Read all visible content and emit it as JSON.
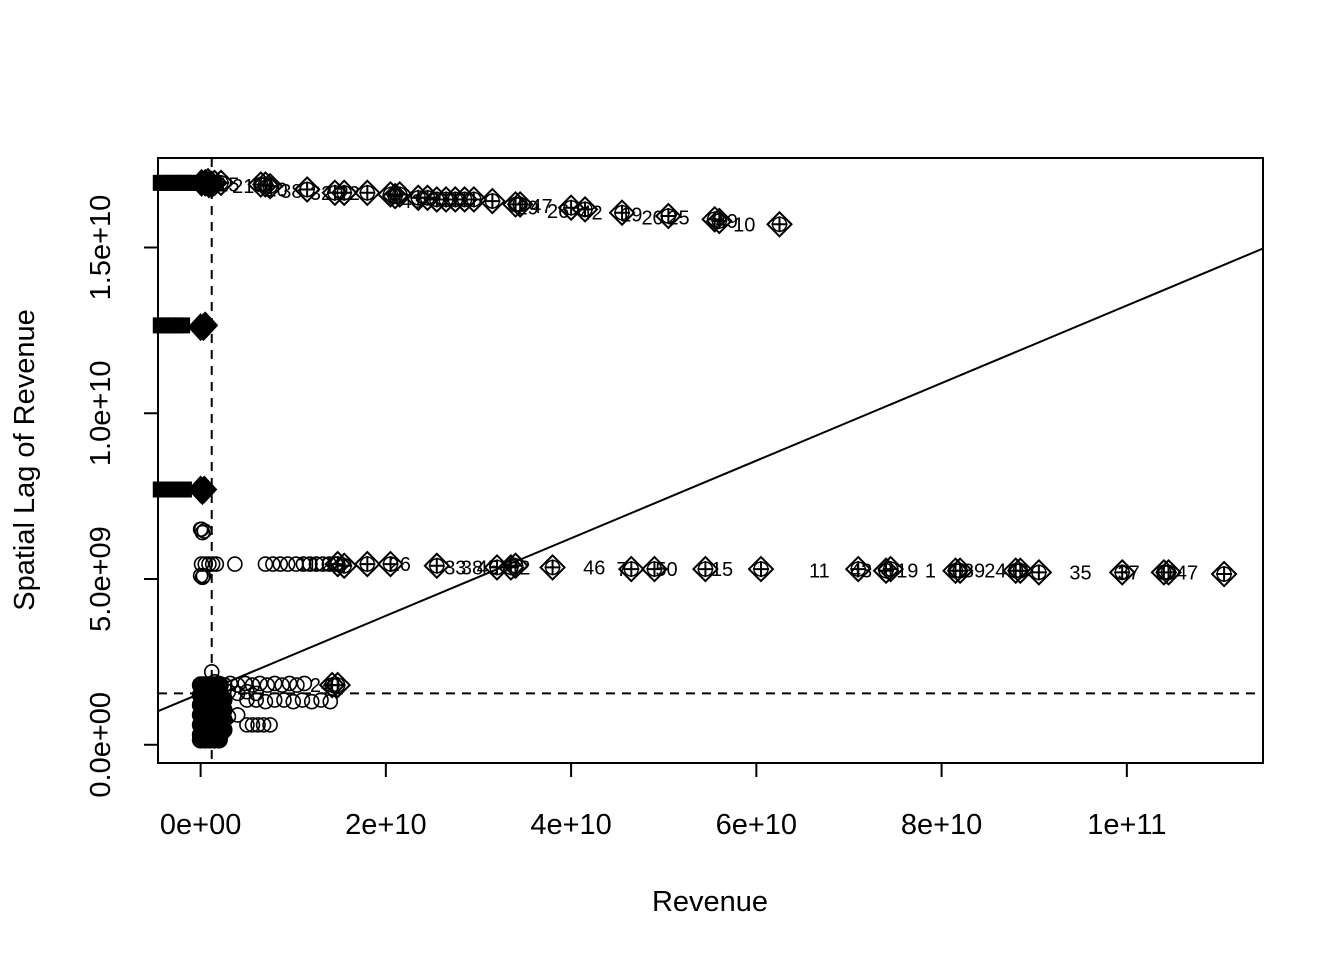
{
  "chart_data": {
    "type": "scatter",
    "title": "",
    "xlabel": "Revenue",
    "ylabel": "Spatial Lag of Revenue",
    "xlim": [
      -4600000000.0,
      114700000000.0
    ],
    "ylim": [
      -550000000.0,
      17700000000.0
    ],
    "x_ticks": [
      0,
      20000000000.0,
      40000000000.0,
      60000000000.0,
      80000000000.0,
      100000000000.0
    ],
    "x_tick_labels": [
      "0e+00",
      "2e+10",
      "4e+10",
      "6e+10",
      "8e+10",
      "1e+11"
    ],
    "y_ticks": [
      0,
      5000000000.0,
      10000000000.0,
      15000000000.0
    ],
    "y_tick_labels": [
      "0.0e+00",
      "5.0e+09",
      "1.0e+10",
      "1.5e+10"
    ],
    "mean_x": 1200000000.0,
    "mean_y": 1550000000.0,
    "regression_line": {
      "intercept": 1550000000.0,
      "slope": 0.117
    },
    "grid": false,
    "legend": "none",
    "clusters": [
      {
        "marker": "filled-square",
        "points": [
          [
            -4300000000.0,
            16950000000.0
          ],
          [
            -3600000000.0,
            16950000000.0
          ],
          [
            -3000000000.0,
            16950000000.0
          ],
          [
            -2400000000.0,
            16950000000.0
          ],
          [
            -1800000000.0,
            16950000000.0
          ],
          [
            -1200000000.0,
            16950000000.0
          ],
          [
            -700000000.0,
            16950000000.0
          ],
          [
            -4300000000.0,
            12650000000.0
          ],
          [
            -3500000000.0,
            12650000000.0
          ],
          [
            -2800000000.0,
            12650000000.0
          ],
          [
            -2000000000.0,
            12650000000.0
          ],
          [
            -4300000000.0,
            7700000000.0
          ],
          [
            -3400000000.0,
            7700000000.0
          ],
          [
            -2600000000.0,
            7700000000.0
          ],
          [
            -1800000000.0,
            7700000000.0
          ]
        ]
      },
      {
        "marker": "filled-diamond",
        "points": [
          [
            100000000.0,
            16950000000.0
          ],
          [
            500000000.0,
            16950000000.0
          ],
          [
            900000000.0,
            16900000000.0
          ],
          [
            1200000000.0,
            16900000000.0
          ],
          [
            0.0,
            12600000000.0
          ],
          [
            300000000.0,
            12600000000.0
          ],
          [
            500000000.0,
            12650000000.0
          ],
          [
            0.0,
            7700000000.0
          ],
          [
            200000000.0,
            7650000000.0
          ],
          [
            400000000.0,
            7700000000.0
          ]
        ]
      },
      {
        "marker": "open-circle",
        "points": [
          [
            0.0,
            6500000000.0
          ],
          [
            200000000.0,
            6400000000.0
          ],
          [
            400000000.0,
            6450000000.0
          ],
          [
            100000000.0,
            6500000000.0
          ],
          [
            0.0,
            5100000000.0
          ],
          [
            200000000.0,
            5050000000.0
          ],
          [
            300000000.0,
            5100000000.0
          ],
          [
            100000000.0,
            5450000000.0
          ],
          [
            500000000.0,
            5450000000.0
          ],
          [
            900000000.0,
            5450000000.0
          ],
          [
            1300000000.0,
            5450000000.0
          ],
          [
            1700000000.0,
            5450000000.0
          ],
          [
            3700000000.0,
            5450000000.0
          ],
          [
            7000000000.0,
            5450000000.0
          ],
          [
            7800000000.0,
            5450000000.0
          ],
          [
            8600000000.0,
            5450000000.0
          ],
          [
            9400000000.0,
            5450000000.0
          ],
          [
            10300000000.0,
            5450000000.0
          ],
          [
            11100000000.0,
            5450000000.0
          ],
          [
            11800000000.0,
            5450000000.0
          ],
          [
            12500000000.0,
            5450000000.0
          ],
          [
            13200000000.0,
            5450000000.0
          ],
          [
            13900000000.0,
            5450000000.0
          ],
          [
            14600000000.0,
            5450000000.0
          ],
          [
            1200000000.0,
            2200000000.0
          ],
          [
            1500000000.0,
            1900000000.0
          ],
          [
            2000000000.0,
            1850000000.0
          ],
          [
            2600000000.0,
            1800000000.0
          ],
          [
            3200000000.0,
            1850000000.0
          ],
          [
            4000000000.0,
            1800000000.0
          ],
          [
            4800000000.0,
            1850000000.0
          ],
          [
            5600000000.0,
            1800000000.0
          ],
          [
            6400000000.0,
            1850000000.0
          ],
          [
            7200000000.0,
            1800000000.0
          ],
          [
            8000000000.0,
            1850000000.0
          ],
          [
            8800000000.0,
            1800000000.0
          ],
          [
            9600000000.0,
            1850000000.0
          ],
          [
            10400000000.0,
            1800000000.0
          ],
          [
            11200000000.0,
            1850000000.0
          ],
          [
            5000000000.0,
            1350000000.0
          ],
          [
            6000000000.0,
            1350000000.0
          ],
          [
            7000000000.0,
            1300000000.0
          ],
          [
            8000000000.0,
            1350000000.0
          ],
          [
            9000000000.0,
            1350000000.0
          ],
          [
            10000000000.0,
            1300000000.0
          ],
          [
            11000000000.0,
            1350000000.0
          ],
          [
            12000000000.0,
            1300000000.0
          ],
          [
            13000000000.0,
            1350000000.0
          ],
          [
            14000000000.0,
            1300000000.0
          ],
          [
            3000000000.0,
            1600000000.0
          ],
          [
            4000000000.0,
            1550000000.0
          ],
          [
            5000000000.0,
            1600000000.0
          ],
          [
            6000000000.0,
            1550000000.0
          ],
          [
            2000000000.0,
            900000000.0
          ],
          [
            3000000000.0,
            850000000.0
          ],
          [
            4000000000.0,
            900000000.0
          ],
          [
            5000000000.0,
            600000000.0
          ],
          [
            5600000000.0,
            600000000.0
          ],
          [
            6200000000.0,
            600000000.0
          ],
          [
            6800000000.0,
            600000000.0
          ],
          [
            7500000000.0,
            600000000.0
          ]
        ]
      },
      {
        "marker": "dense-circles",
        "points": [
          [
            0.0,
            300000000.0
          ],
          [
            300000000.0,
            300000000.0
          ],
          [
            600000000.0,
            300000000.0
          ],
          [
            900000000.0,
            300000000.0
          ],
          [
            1200000000.0,
            300000000.0
          ],
          [
            1500000000.0,
            300000000.0
          ],
          [
            1800000000.0,
            300000000.0
          ],
          [
            2100000000.0,
            300000000.0
          ],
          [
            0.0,
            600000000.0
          ],
          [
            300000000.0,
            600000000.0
          ],
          [
            600000000.0,
            600000000.0
          ],
          [
            900000000.0,
            600000000.0
          ],
          [
            1200000000.0,
            600000000.0
          ],
          [
            1500000000.0,
            600000000.0
          ],
          [
            1800000000.0,
            600000000.0
          ],
          [
            2100000000.0,
            600000000.0
          ],
          [
            0.0,
            900000000.0
          ],
          [
            300000000.0,
            900000000.0
          ],
          [
            600000000.0,
            900000000.0
          ],
          [
            900000000.0,
            900000000.0
          ],
          [
            1200000000.0,
            900000000.0
          ],
          [
            1500000000.0,
            900000000.0
          ],
          [
            1800000000.0,
            900000000.0
          ],
          [
            2100000000.0,
            900000000.0
          ],
          [
            0.0,
            1200000000.0
          ],
          [
            300000000.0,
            1200000000.0
          ],
          [
            600000000.0,
            1200000000.0
          ],
          [
            900000000.0,
            1200000000.0
          ],
          [
            1200000000.0,
            1200000000.0
          ],
          [
            1500000000.0,
            1200000000.0
          ],
          [
            1800000000.0,
            1200000000.0
          ],
          [
            2100000000.0,
            1200000000.0
          ],
          [
            0.0,
            1500000000.0
          ],
          [
            300000000.0,
            1500000000.0
          ],
          [
            600000000.0,
            1500000000.0
          ],
          [
            900000000.0,
            1500000000.0
          ],
          [
            1200000000.0,
            1500000000.0
          ],
          [
            1500000000.0,
            1500000000.0
          ],
          [
            1800000000.0,
            1500000000.0
          ],
          [
            2100000000.0,
            1500000000.0
          ],
          [
            0.0,
            1800000000.0
          ],
          [
            300000000.0,
            1800000000.0
          ],
          [
            600000000.0,
            1800000000.0
          ],
          [
            900000000.0,
            1800000000.0
          ],
          [
            1200000000.0,
            1800000000.0
          ],
          [
            1500000000.0,
            1800000000.0
          ],
          [
            1800000000.0,
            1800000000.0
          ],
          [
            2100000000.0,
            1800000000.0
          ],
          [
            0.0,
            150000000.0
          ],
          [
            500000000.0,
            150000000.0
          ],
          [
            1000000000.0,
            150000000.0
          ],
          [
            1500000000.0,
            150000000.0
          ],
          [
            2000000000.0,
            150000000.0
          ],
          [
            2500000000.0,
            450000000.0
          ],
          [
            2500000000.0,
            750000000.0
          ],
          [
            2500000000.0,
            1050000000.0
          ],
          [
            2500000000.0,
            1350000000.0
          ]
        ]
      },
      {
        "marker": "diamond-plus",
        "points": [
          [
            800000000.0,
            17000000000.0
          ],
          [
            1500000000.0,
            16950000000.0
          ],
          [
            2200000000.0,
            16950000000.0
          ],
          [
            6500000000.0,
            16900000000.0
          ],
          [
            7000000000.0,
            16900000000.0
          ],
          [
            7500000000.0,
            16850000000.0
          ],
          [
            11500000000.0,
            16750000000.0
          ],
          [
            14500000000.0,
            16650000000.0
          ],
          [
            15500000000.0,
            16650000000.0
          ],
          [
            18000000000.0,
            16650000000.0
          ],
          [
            20500000000.0,
            16600000000.0
          ],
          [
            21000000000.0,
            16550000000.0
          ],
          [
            21500000000.0,
            16600000000.0
          ],
          [
            23500000000.0,
            16500000000.0
          ],
          [
            24500000000.0,
            16500000000.0
          ],
          [
            25500000000.0,
            16450000000.0
          ],
          [
            26500000000.0,
            16450000000.0
          ],
          [
            27500000000.0,
            16450000000.0
          ],
          [
            28500000000.0,
            16450000000.0
          ],
          [
            29500000000.0,
            16450000000.0
          ],
          [
            31500000000.0,
            16400000000.0
          ],
          [
            34000000000.0,
            16300000000.0
          ],
          [
            34500000000.0,
            16300000000.0
          ],
          [
            40000000000.0,
            16200000000.0
          ],
          [
            41500000000.0,
            16150000000.0
          ],
          [
            45500000000.0,
            16050000000.0
          ],
          [
            50500000000.0,
            15950000000.0
          ],
          [
            55500000000.0,
            15850000000.0
          ],
          [
            56000000000.0,
            15800000000.0
          ],
          [
            62500000000.0,
            15700000000.0
          ],
          [
            14800000000.0,
            5450000000.0
          ],
          [
            15500000000.0,
            5400000000.0
          ],
          [
            18000000000.0,
            5450000000.0
          ],
          [
            20500000000.0,
            5450000000.0
          ],
          [
            25500000000.0,
            5400000000.0
          ],
          [
            32000000000.0,
            5350000000.0
          ],
          [
            33500000000.0,
            5350000000.0
          ],
          [
            34000000000.0,
            5400000000.0
          ],
          [
            38000000000.0,
            5350000000.0
          ],
          [
            46500000000.0,
            5300000000.0
          ],
          [
            49000000000.0,
            5300000000.0
          ],
          [
            54500000000.0,
            5300000000.0
          ],
          [
            60500000000.0,
            5300000000.0
          ],
          [
            71000000000.0,
            5300000000.0
          ],
          [
            74000000000.0,
            5250000000.0
          ],
          [
            74500000000.0,
            5300000000.0
          ],
          [
            81500000000.0,
            5250000000.0
          ],
          [
            82000000000.0,
            5250000000.0
          ],
          [
            88000000000.0,
            5250000000.0
          ],
          [
            88500000000.0,
            5250000000.0
          ],
          [
            90500000000.0,
            5200000000.0
          ],
          [
            99500000000.0,
            5200000000.0
          ],
          [
            104000000000.0,
            5200000000.0
          ],
          [
            104500000000.0,
            5200000000.0
          ],
          [
            110500000000.0,
            5150000000.0
          ],
          [
            14200000000.0,
            1800000000.0
          ],
          [
            14800000000.0,
            1800000000.0
          ]
        ]
      }
    ],
    "point_labels": [
      {
        "text": "15",
        "x": 3000000000.0,
        "y": 16900000000.0
      },
      {
        "text": "21",
        "x": 4600000000.0,
        "y": 16850000000.0
      },
      {
        "text": "10",
        "x": 8200000000.0,
        "y": 16750000000.0
      },
      {
        "text": "38",
        "x": 9800000000.0,
        "y": 16700000000.0
      },
      {
        "text": "32",
        "x": 13000000000.0,
        "y": 16650000000.0
      },
      {
        "text": "22",
        "x": 16000000000.0,
        "y": 16650000000.0
      },
      {
        "text": "43",
        "x": 22800000000.0,
        "y": 16400000000.0
      },
      {
        "text": "29",
        "x": 35300000000.0,
        "y": 16200000000.0
      },
      {
        "text": "47",
        "x": 36800000000.0,
        "y": 16250000000.0
      },
      {
        "text": "26",
        "x": 38600000000.0,
        "y": 16100000000.0
      },
      {
        "text": "42",
        "x": 42200000000.0,
        "y": 16050000000.0
      },
      {
        "text": "19",
        "x": 46500000000.0,
        "y": 16000000000.0
      },
      {
        "text": "20",
        "x": 48800000000.0,
        "y": 15900000000.0
      },
      {
        "text": "25",
        "x": 51600000000.0,
        "y": 15900000000.0
      },
      {
        "text": "49",
        "x": 56800000000.0,
        "y": 15800000000.0
      },
      {
        "text": "10",
        "x": 58700000000.0,
        "y": 15700000000.0
      },
      {
        "text": "11",
        "x": 11500000000.0,
        "y": 5450000000.0
      },
      {
        "text": "12",
        "x": 13000000000.0,
        "y": 5450000000.0
      },
      {
        "text": "26",
        "x": 21500000000.0,
        "y": 5450000000.0
      },
      {
        "text": "33",
        "x": 27500000000.0,
        "y": 5350000000.0
      },
      {
        "text": "38",
        "x": 29300000000.0,
        "y": 5350000000.0
      },
      {
        "text": "45",
        "x": 31000000000.0,
        "y": 5350000000.0
      },
      {
        "text": "2",
        "x": 35000000000.0,
        "y": 5350000000.0
      },
      {
        "text": "46",
        "x": 42500000000.0,
        "y": 5350000000.0
      },
      {
        "text": "7",
        "x": 45500000000.0,
        "y": 5300000000.0
      },
      {
        "text": "50",
        "x": 50300000000.0,
        "y": 5300000000.0
      },
      {
        "text": "15",
        "x": 56300000000.0,
        "y": 5300000000.0
      },
      {
        "text": "11",
        "x": 66800000000.0,
        "y": 5250000000.0
      },
      {
        "text": "43",
        "x": 71300000000.0,
        "y": 5250000000.0
      },
      {
        "text": "19",
        "x": 76300000000.0,
        "y": 5250000000.0
      },
      {
        "text": "1",
        "x": 78800000000.0,
        "y": 5250000000.0
      },
      {
        "text": "39",
        "x": 83500000000.0,
        "y": 5250000000.0
      },
      {
        "text": "24",
        "x": 85800000000.0,
        "y": 5250000000.0
      },
      {
        "text": "35",
        "x": 95000000000.0,
        "y": 5200000000.0
      },
      {
        "text": "37",
        "x": 100200000000.0,
        "y": 5200000000.0
      },
      {
        "text": "47",
        "x": 106500000000.0,
        "y": 5200000000.0
      },
      {
        "text": "24",
        "x": 13000000000.0,
        "y": 1800000000.0
      }
    ]
  }
}
